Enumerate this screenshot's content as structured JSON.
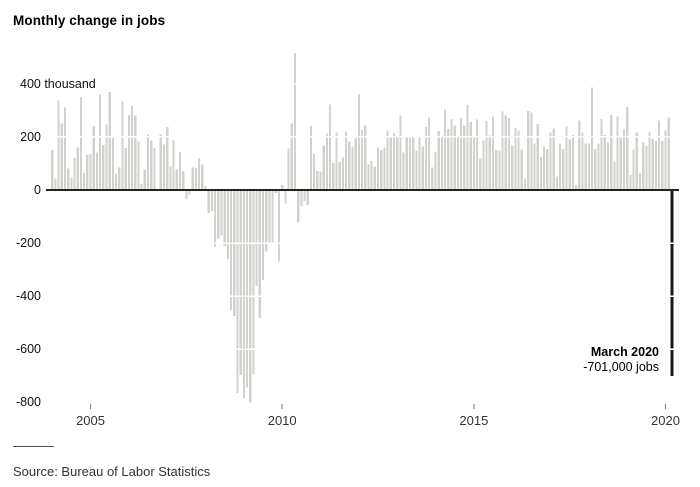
{
  "title": "Monthly change in jobs",
  "source": "Source: Bureau of Labor Statistics",
  "annotation": {
    "line1": "March 2020",
    "line2": "-701,000 jobs"
  },
  "colors": {
    "bar": "#d2d1cd",
    "highlight_bar": "#1d1a16",
    "zero_line": "#26231f",
    "gridline": "#ffffff",
    "tick": "#7a7a7a",
    "title_text": "#000000",
    "axis_text": "#333333"
  },
  "chart_data": {
    "type": "bar",
    "title": "Monthly change in jobs",
    "unit": "thousands of jobs",
    "start_month": "2004-01",
    "end_month": "2020-03",
    "ylim": [
      -850,
      550
    ],
    "grid": "white lines over bars",
    "ytick_values": [
      400,
      200,
      0,
      -200,
      -400,
      -600,
      -800
    ],
    "ytick_labels": [
      "400 thousand",
      "200",
      "0",
      "-200",
      "-400",
      "-600",
      "-800"
    ],
    "xtick_years": [
      2005,
      2010,
      2015,
      2020
    ],
    "xtick_labels": [
      "2005",
      "2010",
      "2015",
      "2020"
    ],
    "gridline_values": [
      400,
      200,
      -200,
      -400,
      -600
    ],
    "highlight": {
      "month": "2020-03",
      "value": -701,
      "label": "March 2020",
      "sublabel": "-701,000 jobs"
    },
    "values": [
      150,
      43,
      338,
      250,
      310,
      81,
      47,
      121,
      160,
      351,
      64,
      132,
      136,
      240,
      142,
      360,
      169,
      246,
      369,
      195,
      63,
      84,
      334,
      158,
      283,
      317,
      280,
      182,
      22,
      78,
      210,
      186,
      158,
      2,
      209,
      171,
      238,
      88,
      188,
      78,
      144,
      71,
      -33,
      -16,
      85,
      82,
      118,
      97,
      15,
      -86,
      -80,
      -214,
      -182,
      -172,
      -210,
      -259,
      -452,
      -474,
      -765,
      -697,
      -783,
      -743,
      -800,
      -695,
      -361,
      -482,
      -339,
      -231,
      -199,
      -202,
      -11,
      -269,
      18,
      -50,
      156,
      251,
      516,
      -122,
      -61,
      -42,
      -57,
      241,
      137,
      71,
      70,
      168,
      212,
      322,
      102,
      217,
      106,
      122,
      221,
      183,
      164,
      196,
      360,
      226,
      243,
      96,
      110,
      88,
      160,
      150,
      161,
      225,
      203,
      214,
      197,
      280,
      141,
      203,
      199,
      201,
      149,
      202,
      164,
      237,
      274,
      84,
      144,
      222,
      203,
      304,
      229,
      267,
      243,
      203,
      271,
      243,
      321,
      256,
      201,
      266,
      119,
      187,
      260,
      206,
      277,
      150,
      149,
      295,
      280,
      271,
      168,
      233,
      225,
      153,
      43,
      297,
      291,
      176,
      249,
      124,
      164,
      155,
      216,
      232,
      50,
      175,
      155,
      239,
      190,
      208,
      18,
      261,
      216,
      175,
      176,
      387,
      155,
      175,
      268,
      208,
      178,
      282,
      108,
      277,
      196,
      227,
      312,
      56,
      153,
      216,
      62,
      178,
      166,
      219,
      193,
      185,
      261,
      184,
      225,
      273,
      -701
    ]
  }
}
